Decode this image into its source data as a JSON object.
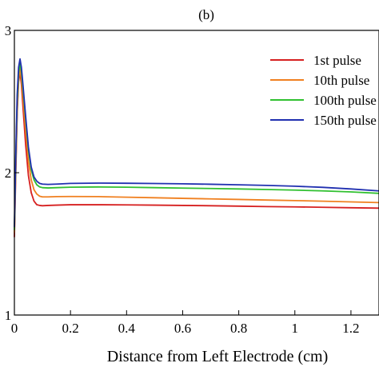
{
  "panel_label": "(b)",
  "chart_data": {
    "type": "line",
    "title": "",
    "xlabel": "Distance from Left Electrode (cm)",
    "ylabel": "",
    "xlim": [
      0,
      1.3
    ],
    "ylim": [
      1,
      3
    ],
    "xticks": [
      0,
      0.2,
      0.4,
      0.6,
      0.8,
      1,
      1.2
    ],
    "xtick_labels": [
      "0",
      "0.2",
      "0.4",
      "0.6",
      "0.8",
      "1",
      "1.2"
    ],
    "yticks": [
      1,
      2,
      3
    ],
    "ytick_labels": [
      "1",
      "2",
      "3"
    ],
    "grid": false,
    "legend": {
      "placement": "top-right",
      "entries": [
        "1st pulse",
        "10th pulse",
        "100th pulse",
        "150th pulse"
      ]
    },
    "series": [
      {
        "name": "1st pulse",
        "color": "#d62020",
        "x": [
          0,
          0.005,
          0.01,
          0.015,
          0.02,
          0.025,
          0.03,
          0.04,
          0.05,
          0.06,
          0.07,
          0.08,
          0.09,
          0.1,
          0.12,
          0.15,
          0.2,
          0.3,
          0.4,
          0.5,
          0.6,
          0.7,
          0.8,
          0.9,
          1.0,
          1.1,
          1.2,
          1.3
        ],
        "y": [
          1.55,
          2.0,
          2.42,
          2.64,
          2.71,
          2.62,
          2.48,
          2.2,
          1.98,
          1.86,
          1.8,
          1.775,
          1.77,
          1.768,
          1.77,
          1.772,
          1.775,
          1.775,
          1.774,
          1.772,
          1.77,
          1.768,
          1.765,
          1.762,
          1.76,
          1.757,
          1.754,
          1.751
        ]
      },
      {
        "name": "10th pulse",
        "color": "#f08020",
        "x": [
          0,
          0.005,
          0.01,
          0.015,
          0.02,
          0.025,
          0.03,
          0.04,
          0.05,
          0.06,
          0.07,
          0.08,
          0.09,
          0.1,
          0.12,
          0.15,
          0.2,
          0.3,
          0.4,
          0.5,
          0.6,
          0.7,
          0.8,
          0.9,
          1.0,
          1.1,
          1.2,
          1.3
        ],
        "y": [
          1.58,
          2.05,
          2.45,
          2.66,
          2.73,
          2.66,
          2.54,
          2.3,
          2.08,
          1.95,
          1.88,
          1.85,
          1.835,
          1.83,
          1.83,
          1.832,
          1.833,
          1.832,
          1.828,
          1.824,
          1.82,
          1.816,
          1.812,
          1.808,
          1.804,
          1.8,
          1.795,
          1.79
        ]
      },
      {
        "name": "100th pulse",
        "color": "#30c030",
        "x": [
          0,
          0.005,
          0.01,
          0.015,
          0.02,
          0.025,
          0.03,
          0.04,
          0.05,
          0.06,
          0.07,
          0.08,
          0.09,
          0.1,
          0.12,
          0.15,
          0.2,
          0.3,
          0.4,
          0.5,
          0.6,
          0.7,
          0.8,
          0.9,
          1.0,
          1.1,
          1.2,
          1.3
        ],
        "y": [
          1.6,
          2.1,
          2.5,
          2.7,
          2.77,
          2.71,
          2.6,
          2.38,
          2.16,
          2.02,
          1.95,
          1.915,
          1.9,
          1.895,
          1.893,
          1.895,
          1.898,
          1.9,
          1.898,
          1.895,
          1.892,
          1.889,
          1.886,
          1.882,
          1.878,
          1.872,
          1.865,
          1.855
        ]
      },
      {
        "name": "150th pulse",
        "color": "#2030b0",
        "x": [
          0,
          0.005,
          0.01,
          0.015,
          0.02,
          0.025,
          0.03,
          0.04,
          0.05,
          0.06,
          0.07,
          0.08,
          0.09,
          0.1,
          0.12,
          0.15,
          0.2,
          0.3,
          0.4,
          0.5,
          0.6,
          0.7,
          0.8,
          0.9,
          1.0,
          1.1,
          1.2,
          1.3
        ],
        "y": [
          1.62,
          2.12,
          2.55,
          2.74,
          2.8,
          2.74,
          2.63,
          2.4,
          2.18,
          2.04,
          1.97,
          1.94,
          1.925,
          1.92,
          1.918,
          1.92,
          1.925,
          1.927,
          1.926,
          1.924,
          1.922,
          1.919,
          1.915,
          1.911,
          1.905,
          1.897,
          1.886,
          1.872
        ]
      }
    ]
  }
}
